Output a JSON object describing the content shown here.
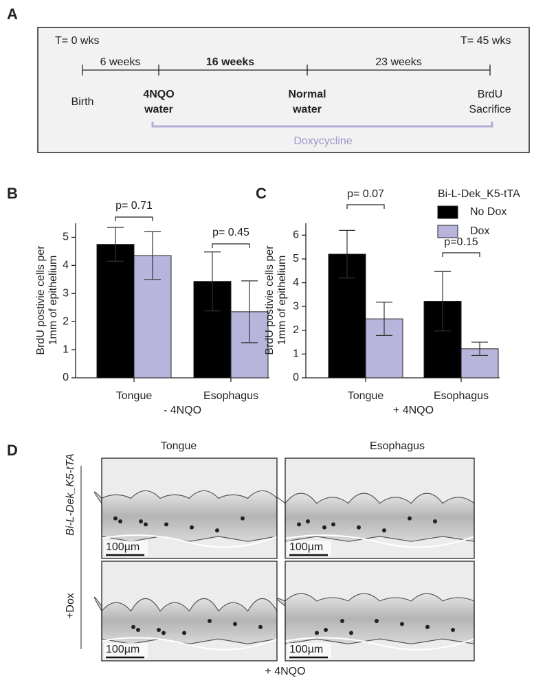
{
  "panel_a": {
    "label": "A",
    "start": "T= 0 wks",
    "end": "T= 45 wks",
    "intervals": [
      "6 weeks",
      "16 weeks",
      "23 weeks"
    ],
    "events": [
      [
        "Birth"
      ],
      [
        "4NQO",
        "water"
      ],
      [
        "Normal",
        "water"
      ],
      [
        "BrdU",
        "Sacrifice"
      ]
    ],
    "treatment": "Doxycycline"
  },
  "chart_data": [
    {
      "type": "bar",
      "label": "B",
      "y_label": [
        "BrdU postivie cells per",
        "1mm of epithelium"
      ],
      "x_label": "-  4NQO",
      "categories": [
        "Tongue",
        "Esophagus"
      ],
      "series": [
        {
          "color": "#000000",
          "values": [
            4.75,
            3.43
          ],
          "errors": [
            0.6,
            1.05
          ]
        },
        {
          "color": "#b8b5dc",
          "values": [
            4.35,
            2.35
          ],
          "errors": [
            0.85,
            1.1
          ]
        }
      ],
      "annotations": [
        "p= 0.71",
        "p= 0.45"
      ],
      "ylim": [
        0,
        5.5
      ],
      "yticks": [
        0,
        1,
        2,
        3,
        4,
        5
      ]
    },
    {
      "type": "bar",
      "label": "C",
      "y_label": [
        "BrdU postivie cells per",
        "1mm of epithelium"
      ],
      "x_label": "+ 4NQO",
      "categories": [
        "Tongue",
        "Esophagus"
      ],
      "legend_title": "Bi-L-Dek_K5-tTA",
      "series": [
        {
          "name": "No Dox",
          "color": "#000000",
          "values": [
            5.2,
            3.22
          ],
          "errors": [
            1.0,
            1.25
          ]
        },
        {
          "name": "Dox",
          "color": "#b8b5dc",
          "values": [
            2.48,
            1.22
          ],
          "errors": [
            0.7,
            0.28
          ]
        }
      ],
      "annotations": [
        "p= 0.07",
        "p=0.15"
      ],
      "ylim": [
        0,
        6.5
      ],
      "yticks": [
        0,
        1,
        2,
        3,
        4,
        5,
        6
      ]
    }
  ],
  "panel_d": {
    "label": "D",
    "columns": [
      "Tongue",
      "Esophagus"
    ],
    "row_label": "Bi-L-Dek_K5-tTA",
    "treatment": "+Dox",
    "scale_bars": [
      "100µm",
      "100µm",
      "100µm",
      "100µm"
    ],
    "condition": "+ 4NQO"
  }
}
